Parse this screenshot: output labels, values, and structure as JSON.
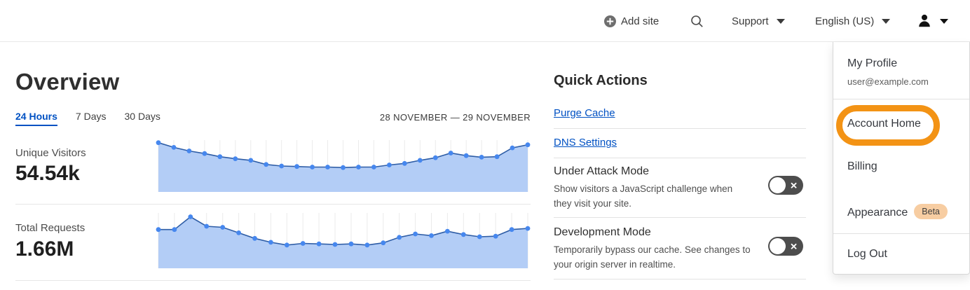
{
  "header": {
    "add_site_label": "Add site",
    "support_label": "Support",
    "language_label": "English (US)"
  },
  "main": {
    "title": "Overview",
    "tabs": [
      {
        "label": "24 Hours",
        "active": true
      },
      {
        "label": "7 Days",
        "active": false
      },
      {
        "label": "30 Days",
        "active": false
      }
    ],
    "date_range": "28 NOVEMBER — 29 NOVEMBER",
    "stats": [
      {
        "label": "Unique Visitors",
        "value": "54.54k"
      },
      {
        "label": "Total Requests",
        "value": "1.66M"
      }
    ]
  },
  "quick_actions": {
    "title": "Quick Actions",
    "links": [
      {
        "label": "Purge Cache"
      },
      {
        "label": "DNS Settings"
      }
    ],
    "toggles": [
      {
        "title": "Under Attack Mode",
        "description": "Show visitors a JavaScript challenge when they visit your site.",
        "state": "off"
      },
      {
        "title": "Development Mode",
        "description": "Temporarily bypass our cache. See changes to your origin server in realtime.",
        "state": "off"
      }
    ],
    "icon_x": "✕"
  },
  "user_menu": {
    "profile_label": "My Profile",
    "profile_email": "user@example.com",
    "items": [
      {
        "label": "Account Home",
        "highlighted": true
      },
      {
        "label": "Billing"
      },
      {
        "label": "Appearance",
        "badge": "Beta"
      },
      {
        "label": "Log Out"
      }
    ]
  },
  "chart_data": [
    {
      "type": "area",
      "title": "Unique Visitors",
      "total": "54.54k",
      "x_range": "28 November – 29 November (24 hours)",
      "ylabel": "visitors (axis unlabeled, relative height 0-1)",
      "grid": "vertical gridlines per point",
      "legend": "none",
      "values": [
        0.95,
        0.86,
        0.79,
        0.74,
        0.68,
        0.64,
        0.61,
        0.53,
        0.5,
        0.49,
        0.48,
        0.48,
        0.47,
        0.48,
        0.48,
        0.52,
        0.55,
        0.61,
        0.66,
        0.75,
        0.7,
        0.67,
        0.68,
        0.85,
        0.91
      ]
    },
    {
      "type": "area",
      "title": "Total Requests",
      "total": "1.66M",
      "x_range": "28 November – 29 November (24 hours)",
      "ylabel": "requests (axis unlabeled, relative height 0-1)",
      "grid": "vertical gridlines per point",
      "legend": "none",
      "values": [
        0.7,
        0.7,
        0.93,
        0.76,
        0.74,
        0.64,
        0.54,
        0.47,
        0.42,
        0.45,
        0.44,
        0.43,
        0.44,
        0.42,
        0.46,
        0.56,
        0.62,
        0.59,
        0.67,
        0.61,
        0.57,
        0.58,
        0.7,
        0.72
      ]
    }
  ],
  "colors": {
    "accent_blue": "#0051c3",
    "chart_fill": "#b3cdf6",
    "chart_line": "#2e5da6",
    "chart_dot": "#4687ee",
    "chart_grid": "#ebebeb",
    "toggle_bg": "#4d4d4d",
    "annotation_orange": "#f39315",
    "beta_badge_bg": "#f7cda2"
  }
}
